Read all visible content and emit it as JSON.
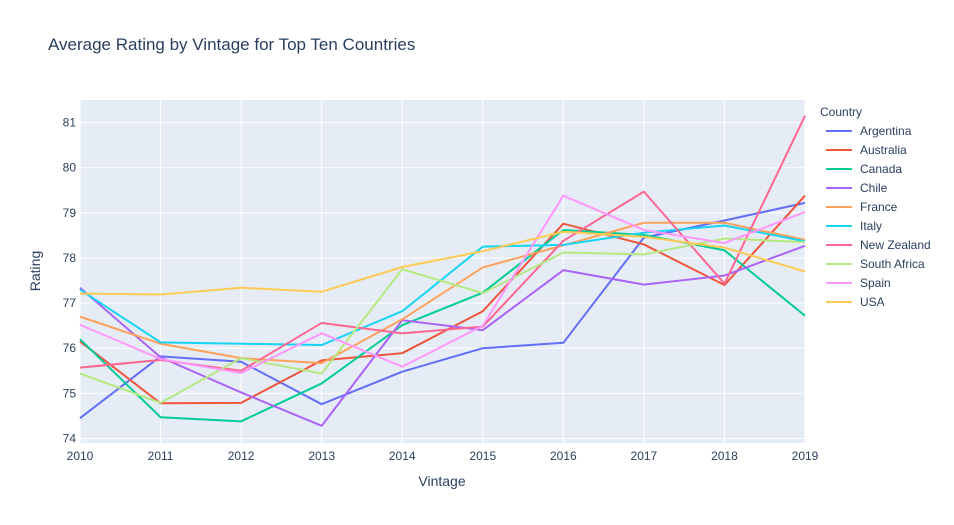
{
  "chart_data": {
    "type": "line",
    "title": "Average Rating by Vintage for Top Ten Countries",
    "xlabel": "Vintage",
    "ylabel": "Rating",
    "legend_title": "Country",
    "legend_placement": "right",
    "grid": true,
    "xlim": [
      2010,
      2019
    ],
    "ylim": [
      73.9,
      81.5
    ],
    "x": [
      2010,
      2011,
      2012,
      2013,
      2014,
      2015,
      2016,
      2017,
      2018,
      2019
    ],
    "x_ticks": [
      "2010",
      "2011",
      "2012",
      "2013",
      "2014",
      "2015",
      "2016",
      "2017",
      "2018",
      "2019"
    ],
    "y_ticks": [
      "74",
      "75",
      "76",
      "77",
      "78",
      "79",
      "80",
      "81"
    ],
    "series": [
      {
        "name": "Argentina",
        "color": "#636efa",
        "values": [
          74.45,
          75.82,
          75.7,
          74.76,
          75.48,
          76.0,
          76.12,
          78.45,
          78.83,
          79.22
        ]
      },
      {
        "name": "Australia",
        "color": "#ef553b",
        "values": [
          76.15,
          74.78,
          74.79,
          75.73,
          75.89,
          76.82,
          78.76,
          78.3,
          77.4,
          79.38
        ]
      },
      {
        "name": "Canada",
        "color": "#00cc96",
        "values": [
          76.2,
          74.47,
          74.38,
          75.22,
          76.51,
          77.23,
          78.62,
          78.51,
          78.17,
          76.72
        ]
      },
      {
        "name": "Chile",
        "color": "#ab63fa",
        "values": [
          77.34,
          75.8,
          75.02,
          74.28,
          76.62,
          76.4,
          77.73,
          77.41,
          77.61,
          78.27
        ]
      },
      {
        "name": "France",
        "color": "#ffa15a",
        "values": [
          76.7,
          76.1,
          75.78,
          75.67,
          76.64,
          77.79,
          78.28,
          78.78,
          78.78,
          78.4
        ]
      },
      {
        "name": "Italy",
        "color": "#19d3f3",
        "values": [
          77.3,
          76.13,
          76.1,
          76.07,
          76.82,
          78.25,
          78.29,
          78.56,
          78.72,
          78.37
        ]
      },
      {
        "name": "New Zealand",
        "color": "#ff6692",
        "values": [
          75.57,
          75.74,
          75.5,
          76.56,
          76.33,
          76.48,
          78.38,
          79.47,
          77.43,
          81.15
        ]
      },
      {
        "name": "South Africa",
        "color": "#b6e880",
        "values": [
          75.44,
          74.79,
          75.78,
          75.44,
          77.75,
          77.22,
          78.12,
          78.08,
          78.43,
          78.35
        ]
      },
      {
        "name": "Spain",
        "color": "#ff97ff",
        "values": [
          76.52,
          75.76,
          75.45,
          76.33,
          75.59,
          76.5,
          79.38,
          78.62,
          78.33,
          79.02
        ]
      },
      {
        "name": "USA",
        "color": "#fecb52",
        "values": [
          77.21,
          77.19,
          77.34,
          77.25,
          77.8,
          78.15,
          78.58,
          78.47,
          78.23,
          77.7
        ]
      }
    ]
  }
}
